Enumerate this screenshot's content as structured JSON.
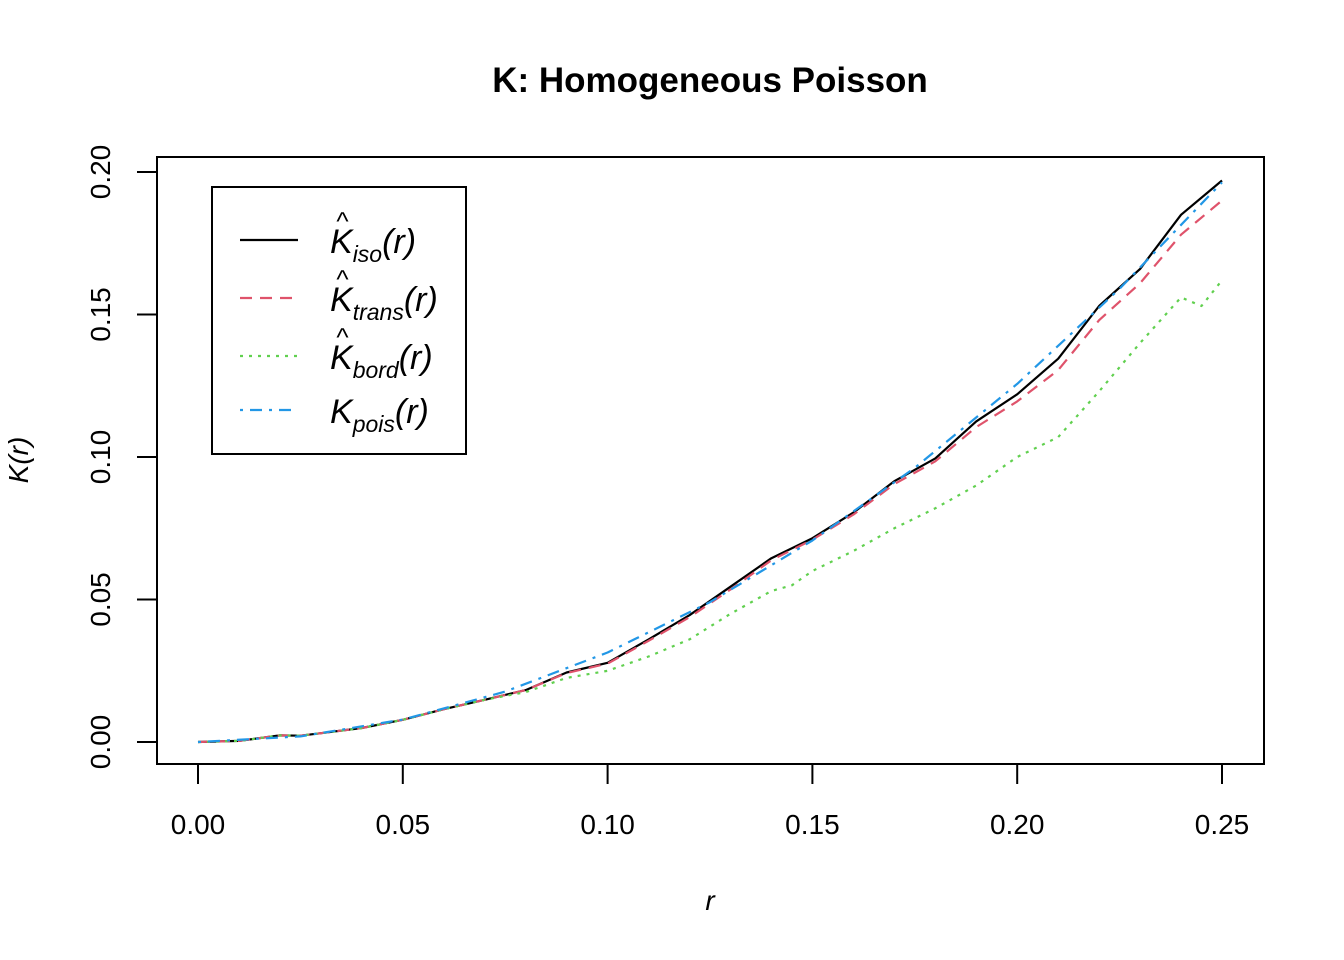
{
  "chart_data": {
    "type": "line",
    "title": "K: Homogeneous Poisson",
    "xlabel": "r",
    "ylabel": "K(r)",
    "xlim": [
      0,
      0.25
    ],
    "ylim": [
      0,
      0.2
    ],
    "x_ticks": [
      "0.00",
      "0.05",
      "0.10",
      "0.15",
      "0.20",
      "0.25"
    ],
    "y_ticks": [
      "0.00",
      "0.05",
      "0.10",
      "0.15",
      "0.20"
    ],
    "legend_position": "top-left",
    "series": [
      {
        "name": "K̂iso(r)",
        "legend": {
          "base": "K",
          "hat": true,
          "sub": "iso",
          "arg": "(r)"
        },
        "color": "#000000",
        "dash": "solid",
        "x": [
          0,
          0.01,
          0.02,
          0.025,
          0.03,
          0.04,
          0.05,
          0.06,
          0.07,
          0.08,
          0.09,
          0.1,
          0.11,
          0.12,
          0.13,
          0.14,
          0.15,
          0.16,
          0.17,
          0.18,
          0.19,
          0.2,
          0.21,
          0.22,
          0.23,
          0.24,
          0.25
        ],
        "y": [
          0,
          0.0004,
          0.0023,
          0.0022,
          0.0031,
          0.0049,
          0.0078,
          0.0115,
          0.0148,
          0.0182,
          0.0244,
          0.0278,
          0.036,
          0.0445,
          0.0545,
          0.0645,
          0.0715,
          0.0805,
          0.0915,
          0.0995,
          0.1125,
          0.122,
          0.1345,
          0.153,
          0.166,
          0.185,
          0.197
        ]
      },
      {
        "name": "K̂trans(r)",
        "legend": {
          "base": "K",
          "hat": true,
          "sub": "trans",
          "arg": "(r)"
        },
        "color": "#DF536B",
        "dash": "dashed",
        "x": [
          0,
          0.01,
          0.02,
          0.025,
          0.03,
          0.04,
          0.05,
          0.06,
          0.07,
          0.08,
          0.09,
          0.1,
          0.11,
          0.12,
          0.13,
          0.14,
          0.15,
          0.16,
          0.17,
          0.18,
          0.19,
          0.2,
          0.21,
          0.22,
          0.23,
          0.24,
          0.25
        ],
        "y": [
          0,
          0.0004,
          0.0023,
          0.0022,
          0.0031,
          0.0049,
          0.0078,
          0.0115,
          0.0148,
          0.0182,
          0.0242,
          0.0275,
          0.0355,
          0.0438,
          0.0535,
          0.0638,
          0.071,
          0.0798,
          0.0905,
          0.0985,
          0.1105,
          0.1195,
          0.1305,
          0.148,
          0.161,
          0.178,
          0.19
        ]
      },
      {
        "name": "K̂bord(r)",
        "legend": {
          "base": "K",
          "hat": true,
          "sub": "bord",
          "arg": "(r)"
        },
        "color": "#61D04F",
        "dash": "dotted",
        "x": [
          0,
          0.01,
          0.02,
          0.025,
          0.03,
          0.04,
          0.05,
          0.06,
          0.07,
          0.08,
          0.09,
          0.1,
          0.11,
          0.12,
          0.13,
          0.14,
          0.145,
          0.15,
          0.16,
          0.17,
          0.18,
          0.19,
          0.2,
          0.21,
          0.22,
          0.23,
          0.24,
          0.245,
          0.25
        ],
        "y": [
          0,
          0.0004,
          0.0023,
          0.0022,
          0.0031,
          0.0049,
          0.0078,
          0.0115,
          0.0148,
          0.0175,
          0.0225,
          0.025,
          0.03,
          0.036,
          0.045,
          0.053,
          0.055,
          0.06,
          0.067,
          0.075,
          0.082,
          0.09,
          0.1,
          0.107,
          0.123,
          0.14,
          0.156,
          0.153,
          0.162
        ]
      },
      {
        "name": "Kpois(r)",
        "legend": {
          "base": "K",
          "hat": false,
          "sub": "pois",
          "arg": "(r)"
        },
        "color": "#2297E6",
        "dash": "dashdot",
        "x": [
          0,
          0.025,
          0.05,
          0.075,
          0.1,
          0.125,
          0.15,
          0.175,
          0.2,
          0.225,
          0.25
        ],
        "y": [
          0,
          0.00196,
          0.00785,
          0.01767,
          0.03142,
          0.04909,
          0.07069,
          0.09621,
          0.12566,
          0.15904,
          0.19635
        ]
      }
    ]
  }
}
